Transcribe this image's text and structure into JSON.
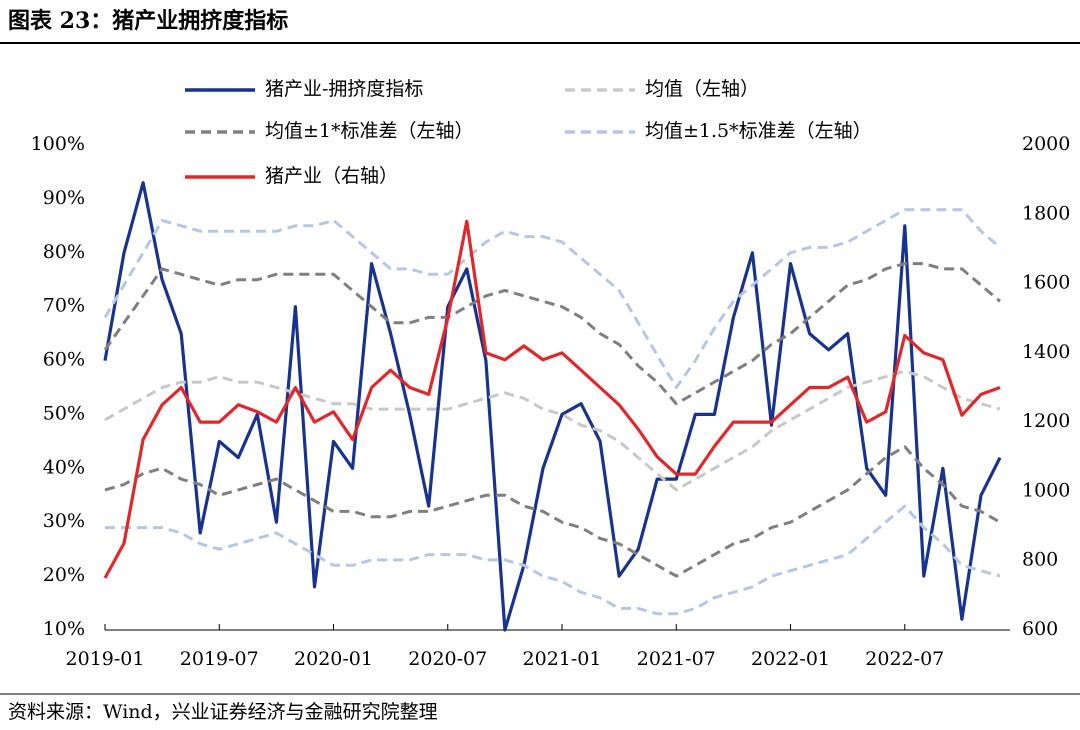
{
  "chart_data": {
    "type": "line",
    "title": "图表 23：猪产业拥挤度指标",
    "source": "资料来源：Wind，兴业证券经济与金融研究院整理",
    "x": [
      "2019-01",
      "2019-02",
      "2019-03",
      "2019-04",
      "2019-05",
      "2019-06",
      "2019-07",
      "2019-08",
      "2019-09",
      "2019-10",
      "2019-11",
      "2019-12",
      "2020-01",
      "2020-02",
      "2020-03",
      "2020-04",
      "2020-05",
      "2020-06",
      "2020-07",
      "2020-08",
      "2020-09",
      "2020-10",
      "2020-11",
      "2020-12",
      "2021-01",
      "2021-02",
      "2021-03",
      "2021-04",
      "2021-05",
      "2021-06",
      "2021-07",
      "2021-08",
      "2021-09",
      "2021-10",
      "2021-11",
      "2021-12",
      "2022-01",
      "2022-02",
      "2022-03",
      "2022-04",
      "2022-05",
      "2022-06",
      "2022-07",
      "2022-08",
      "2022-09",
      "2022-10",
      "2022-11",
      "2022-12"
    ],
    "xlim": [
      "2019-01",
      "2022-12"
    ],
    "xticks": [
      "2019-01",
      "2019-07",
      "2020-01",
      "2020-07",
      "2021-01",
      "2021-07",
      "2022-01",
      "2022-07"
    ],
    "ylim": [
      10,
      100
    ],
    "yticks": [
      {
        "value": 10,
        "label": "10%"
      },
      {
        "value": 20,
        "label": "20%"
      },
      {
        "value": 30,
        "label": "30%"
      },
      {
        "value": 40,
        "label": "40%"
      },
      {
        "value": 50,
        "label": "50%"
      },
      {
        "value": 60,
        "label": "60%"
      },
      {
        "value": 70,
        "label": "70%"
      },
      {
        "value": 80,
        "label": "80%"
      },
      {
        "value": 90,
        "label": "90%"
      },
      {
        "value": 100,
        "label": "100%"
      }
    ],
    "y2lim": [
      600,
      2000
    ],
    "y2ticks": [
      600,
      800,
      1000,
      1200,
      1400,
      1600,
      1800,
      2000
    ],
    "series": [
      {
        "name": "猪产业-拥挤度指标",
        "color": "#17338f",
        "dash": false,
        "values": [
          60,
          80,
          93,
          75,
          65,
          28,
          45,
          42,
          50,
          30,
          70,
          18,
          45,
          40,
          78,
          65,
          50,
          33,
          70,
          77,
          60,
          10,
          22,
          40,
          50,
          52,
          45,
          20,
          25,
          38,
          38,
          50,
          50,
          68,
          80,
          48,
          78,
          65,
          62,
          65,
          40,
          35,
          85,
          20,
          40,
          12,
          35,
          42
        ]
      },
      {
        "name": "均值（左轴）",
        "color": "#c8c8c8",
        "dash": true,
        "values": [
          49,
          51,
          53,
          55,
          56,
          56,
          57,
          56,
          56,
          55,
          54,
          53,
          52,
          52,
          51,
          51,
          51,
          51,
          51,
          52,
          53,
          54,
          53,
          51,
          50,
          48,
          47,
          45,
          42,
          39,
          36,
          38,
          40,
          42,
          44,
          47,
          49,
          51,
          53,
          55,
          56,
          57,
          58,
          57,
          55,
          53,
          52,
          51
        ]
      },
      {
        "name": "均值±1*标准差（左轴）",
        "color": "#7f7f7f",
        "dash": true,
        "values": [
          62,
          67,
          72,
          77,
          76,
          75,
          74,
          75,
          75,
          76,
          76,
          76,
          76,
          73,
          70,
          67,
          67,
          68,
          68,
          70,
          72,
          73,
          72,
          71,
          70,
          68,
          65,
          63,
          59,
          56,
          52,
          54,
          56,
          58,
          60,
          63,
          65,
          68,
          71,
          74,
          75,
          77,
          78,
          78,
          77,
          77,
          74,
          71
        ]
      },
      {
        "name": null,
        "color": "#7f7f7f",
        "dash": true,
        "values": [
          36,
          37,
          39,
          40,
          38,
          37,
          35,
          36,
          37,
          38,
          36,
          34,
          32,
          32,
          31,
          31,
          32,
          32,
          33,
          34,
          35,
          35,
          33,
          32,
          30,
          29,
          27,
          26,
          24,
          22,
          20,
          22,
          24,
          26,
          27,
          29,
          30,
          32,
          34,
          36,
          39,
          42,
          44,
          40,
          37,
          33,
          32,
          30
        ]
      },
      {
        "name": "均值±1.5*标准差（左轴）",
        "color": "#b4c7e7",
        "dash": true,
        "values": [
          68,
          74,
          80,
          86,
          85,
          84,
          84,
          84,
          84,
          84,
          85,
          85,
          86,
          83,
          80,
          77,
          77,
          76,
          76,
          79,
          82,
          84,
          83,
          83,
          82,
          79,
          76,
          73,
          67,
          61,
          55,
          60,
          66,
          71,
          74,
          77,
          80,
          81,
          81,
          82,
          84,
          86,
          88,
          88,
          88,
          88,
          84,
          81
        ]
      },
      {
        "name": null,
        "color": "#b4c7e7",
        "dash": true,
        "values": [
          29,
          29,
          29,
          29,
          28,
          26,
          25,
          26,
          27,
          28,
          26,
          24,
          22,
          22,
          23,
          23,
          23,
          24,
          24,
          24,
          23,
          23,
          22,
          20,
          19,
          17,
          16,
          14,
          14,
          13,
          13,
          14,
          16,
          17,
          18,
          20,
          21,
          22,
          23,
          24,
          27,
          30,
          33,
          29,
          26,
          22,
          21,
          20
        ]
      },
      {
        "name": "猪产业（右轴）",
        "color": "#e0282a",
        "dash": false,
        "axis": "y2",
        "values": [
          750,
          850,
          1150,
          1250,
          1300,
          1200,
          1200,
          1250,
          1230,
          1200,
          1300,
          1200,
          1230,
          1150,
          1300,
          1350,
          1300,
          1280,
          1500,
          1780,
          1400,
          1380,
          1420,
          1380,
          1400,
          1350,
          1300,
          1250,
          1180,
          1100,
          1050,
          1050,
          1130,
          1200,
          1200,
          1200,
          1250,
          1300,
          1300,
          1330,
          1200,
          1230,
          1450,
          1400,
          1380,
          1220,
          1280,
          1300
        ]
      }
    ]
  }
}
